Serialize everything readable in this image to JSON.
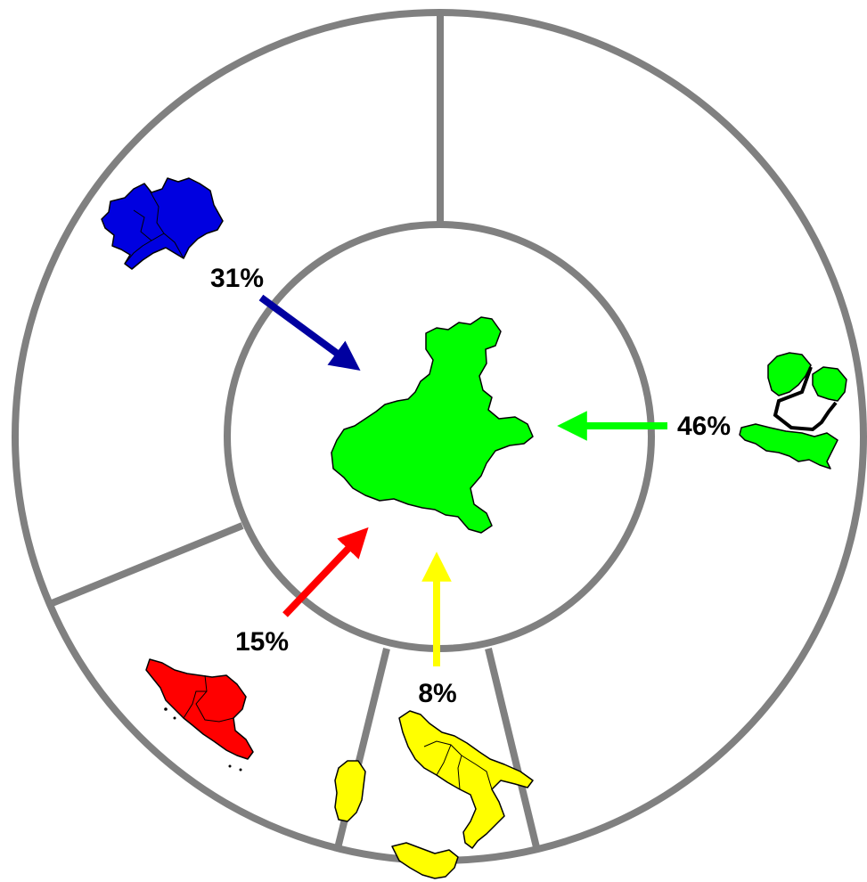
{
  "center_region": {
    "name": "veneto-map-icon",
    "color": "#00ff00"
  },
  "flows": [
    {
      "id": "north-west",
      "label": "31%",
      "color": "#0000a0",
      "region_color": "#0000e0"
    },
    {
      "id": "north-east-centre",
      "label": "46%",
      "color": "#00ff00",
      "region_color": "#00ff00"
    },
    {
      "id": "centre",
      "label": "15%",
      "color": "#ff0000",
      "region_color": "#ff0000"
    },
    {
      "id": "south-islands",
      "label": "8%",
      "color": "#ffff00",
      "region_color": "#ffff00"
    }
  ],
  "ring_color": "#808080"
}
